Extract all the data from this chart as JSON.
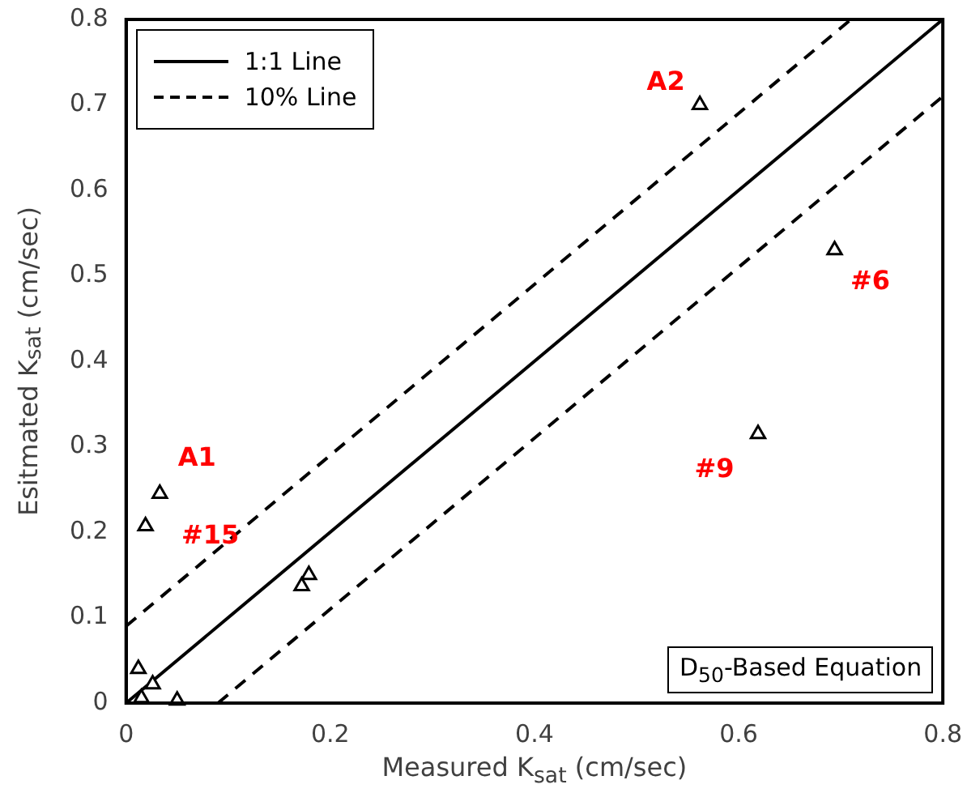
{
  "chart_data": {
    "type": "scatter",
    "xlabel": "Measured K$_{sat}$ (cm/sec)",
    "ylabel": "Esitmated K$_{sat}$ (cm/sec)",
    "xlim": [
      0,
      0.8
    ],
    "xticks": [
      0,
      0.2,
      0.4,
      0.6,
      0.8
    ],
    "ylim": [
      0,
      0.8
    ],
    "yticks": [
      0,
      0.1,
      0.2,
      0.3,
      0.4,
      0.5,
      0.6,
      0.7,
      0.8
    ],
    "grid": false,
    "legend": "top left",
    "series": [
      {
        "type": "scatter",
        "color": "#000000",
        "marker": "triangle",
        "x": [
          0.562,
          0.694,
          0.619,
          0.033,
          0.019,
          0.172,
          0.179,
          0.012,
          0.026,
          0.05,
          0.015
        ],
        "values": [
          0.7,
          0.53,
          0.315,
          0.245,
          0.207,
          0.137,
          0.15,
          0.04,
          0.022,
          0.003,
          0.006
        ]
      },
      {
        "type": "line",
        "name": "1:1 Line",
        "color": "#000000",
        "line_style": "solid",
        "marker": "none",
        "x": [
          0,
          0.8
        ],
        "values": [
          0,
          0.8
        ]
      },
      {
        "type": "line",
        "name": "10% Line",
        "color": "#000000",
        "line_style": "dashed",
        "marker": "none",
        "x": [
          0,
          0.71
        ],
        "values": [
          0.09,
          0.8
        ]
      },
      {
        "type": "line",
        "color": "#000000",
        "line_style": "dashed",
        "marker": "none",
        "x": [
          0.09,
          0.8
        ],
        "values": [
          0,
          0.71
        ]
      }
    ],
    "annotations": [
      {
        "text": "A1",
        "x": 0.033,
        "y": 0.245
      },
      {
        "text": "#15",
        "x": 0.019,
        "y": 0.207
      },
      {
        "text": "A2",
        "x": 0.562,
        "y": 0.7
      },
      {
        "text": "#6",
        "x": 0.694,
        "y": 0.53
      },
      {
        "text": "#9",
        "x": 0.619,
        "y": 0.315
      },
      "D$_{50}$-Based Equation"
    ]
  }
}
